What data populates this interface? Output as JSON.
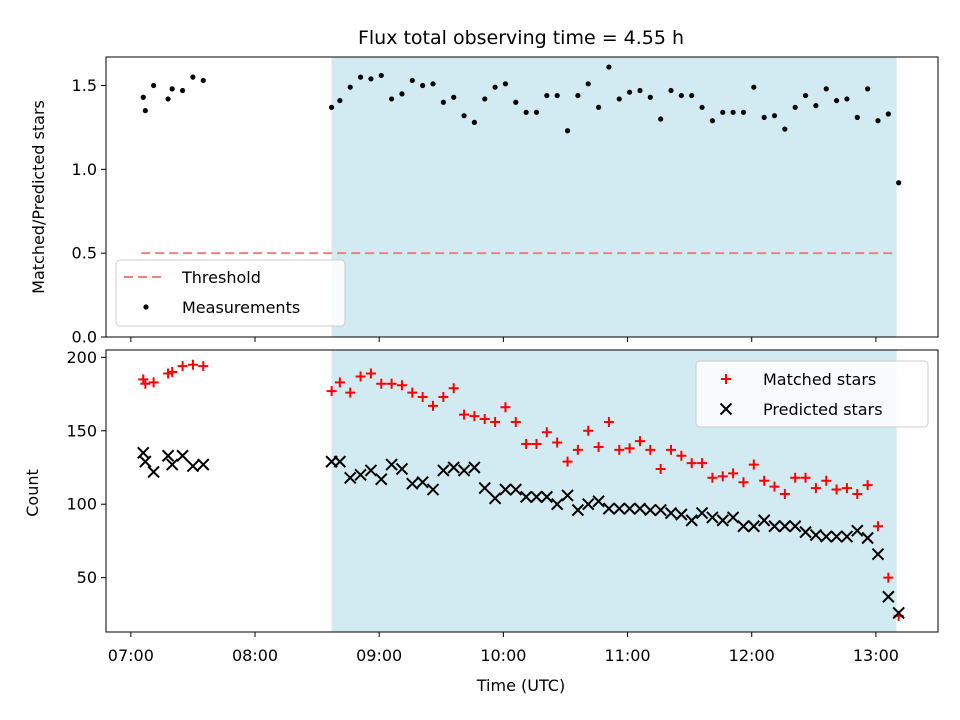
{
  "chart_data": [
    {
      "type": "scatter",
      "title": "Flux total observing time = 4.55 h",
      "ylabel": "Matched/Predicted stars",
      "xlim": [
        "06:48",
        "13:30"
      ],
      "ylim": [
        0,
        1.67
      ],
      "yticks": [
        "0.0",
        "0.5",
        "1.0",
        "1.5"
      ],
      "shaded_interval": [
        "08:37",
        "13:10"
      ],
      "shade_color": "#add8e6",
      "threshold": {
        "name": "Threshold",
        "value": 0.5,
        "x_range": [
          "07:05",
          "13:10"
        ],
        "color": "#f08080"
      },
      "legend_position": "lower-left",
      "series": [
        {
          "name": "Measurements",
          "marker": "dot",
          "color": "#000000",
          "x": [
            "07:06",
            "07:07",
            "07:11",
            "07:18",
            "07:20",
            "07:25",
            "07:30",
            "07:35",
            "08:37",
            "08:41",
            "08:46",
            "08:51",
            "08:56",
            "09:01",
            "09:06",
            "09:11",
            "09:16",
            "09:21",
            "09:26",
            "09:31",
            "09:36",
            "09:41",
            "09:46",
            "09:51",
            "09:56",
            "10:01",
            "10:06",
            "10:11",
            "10:16",
            "10:21",
            "10:26",
            "10:31",
            "10:36",
            "10:41",
            "10:46",
            "10:51",
            "10:56",
            "11:01",
            "11:06",
            "11:11",
            "11:16",
            "11:21",
            "11:26",
            "11:31",
            "11:36",
            "11:41",
            "11:46",
            "11:51",
            "11:56",
            "12:01",
            "12:06",
            "12:11",
            "12:16",
            "12:21",
            "12:26",
            "12:31",
            "12:36",
            "12:41",
            "12:46",
            "12:51",
            "12:56",
            "13:01",
            "13:06",
            "13:11"
          ],
          "y": [
            1.43,
            1.35,
            1.5,
            1.42,
            1.48,
            1.47,
            1.55,
            1.53,
            1.37,
            1.41,
            1.49,
            1.55,
            1.54,
            1.56,
            1.42,
            1.45,
            1.53,
            1.5,
            1.51,
            1.4,
            1.43,
            1.32,
            1.28,
            1.42,
            1.49,
            1.51,
            1.4,
            1.34,
            1.34,
            1.44,
            1.44,
            1.23,
            1.44,
            1.51,
            1.37,
            1.61,
            1.42,
            1.46,
            1.47,
            1.43,
            1.3,
            1.47,
            1.44,
            1.44,
            1.37,
            1.29,
            1.34,
            1.34,
            1.34,
            1.49,
            1.31,
            1.32,
            1.24,
            1.37,
            1.44,
            1.38,
            1.48,
            1.41,
            1.42,
            1.31,
            1.48,
            1.29,
            1.33,
            0.92
          ]
        }
      ]
    },
    {
      "type": "scatter",
      "ylabel": "Count",
      "xlabel": "Time (UTC)",
      "xticks": [
        "07:00",
        "08:00",
        "09:00",
        "10:00",
        "11:00",
        "12:00",
        "13:00"
      ],
      "xlim": [
        "06:48",
        "13:30"
      ],
      "ylim": [
        13,
        205
      ],
      "yticks": [
        "50",
        "100",
        "150",
        "200"
      ],
      "shaded_interval": [
        "08:37",
        "13:10"
      ],
      "shade_color": "#add8e6",
      "legend_position": "upper-right",
      "series": [
        {
          "name": "Matched stars",
          "marker": "plus",
          "color": "#ff0000",
          "x": [
            "07:06",
            "07:07",
            "07:11",
            "07:18",
            "07:20",
            "07:25",
            "07:30",
            "07:35",
            "08:37",
            "08:41",
            "08:46",
            "08:51",
            "08:56",
            "09:01",
            "09:06",
            "09:11",
            "09:16",
            "09:21",
            "09:26",
            "09:31",
            "09:36",
            "09:41",
            "09:46",
            "09:51",
            "09:56",
            "10:01",
            "10:06",
            "10:11",
            "10:16",
            "10:21",
            "10:26",
            "10:31",
            "10:36",
            "10:41",
            "10:46",
            "10:51",
            "10:56",
            "11:01",
            "11:06",
            "11:11",
            "11:16",
            "11:21",
            "11:26",
            "11:31",
            "11:36",
            "11:41",
            "11:46",
            "11:51",
            "11:56",
            "12:01",
            "12:06",
            "12:11",
            "12:16",
            "12:21",
            "12:26",
            "12:31",
            "12:36",
            "12:41",
            "12:46",
            "12:51",
            "12:56",
            "13:01",
            "13:06",
            "13:11"
          ],
          "y": [
            185,
            182,
            183,
            189,
            190,
            194,
            195,
            194,
            177,
            183,
            176,
            187,
            189,
            182,
            182,
            181,
            176,
            173,
            167,
            173,
            179,
            161,
            160,
            158,
            156,
            166,
            156,
            141,
            141,
            149,
            142,
            129,
            137,
            150,
            139,
            156,
            137,
            138,
            143,
            137,
            124,
            137,
            133,
            128,
            128,
            118,
            119,
            121,
            115,
            127,
            116,
            112,
            107,
            118,
            118,
            111,
            116,
            110,
            111,
            107,
            113,
            85,
            50,
            24
          ]
        },
        {
          "name": "Predicted stars",
          "marker": "x",
          "color": "#000000",
          "x": [
            "07:06",
            "07:07",
            "07:11",
            "07:18",
            "07:20",
            "07:25",
            "07:30",
            "07:35",
            "08:37",
            "08:41",
            "08:46",
            "08:51",
            "08:56",
            "09:01",
            "09:06",
            "09:11",
            "09:16",
            "09:21",
            "09:26",
            "09:31",
            "09:36",
            "09:41",
            "09:46",
            "09:51",
            "09:56",
            "10:01",
            "10:06",
            "10:11",
            "10:16",
            "10:21",
            "10:26",
            "10:31",
            "10:36",
            "10:41",
            "10:46",
            "10:51",
            "10:56",
            "11:01",
            "11:06",
            "11:11",
            "11:16",
            "11:21",
            "11:26",
            "11:31",
            "11:36",
            "11:41",
            "11:46",
            "11:51",
            "11:56",
            "12:01",
            "12:06",
            "12:11",
            "12:16",
            "12:21",
            "12:26",
            "12:31",
            "12:36",
            "12:41",
            "12:46",
            "12:51",
            "12:56",
            "13:01",
            "13:06",
            "13:11"
          ],
          "y": [
            135,
            129,
            122,
            133,
            127,
            133,
            126,
            127,
            129,
            129,
            118,
            120,
            123,
            117,
            127,
            124,
            114,
            115,
            110,
            123,
            125,
            123,
            125,
            111,
            104,
            110,
            110,
            105,
            105,
            105,
            100,
            106,
            96,
            100,
            102,
            97,
            97,
            97,
            97,
            96,
            96,
            94,
            93,
            89,
            94,
            91,
            89,
            91,
            85,
            85,
            89,
            85,
            85,
            85,
            81,
            79,
            78,
            78,
            78,
            82,
            77,
            66,
            37,
            26
          ]
        }
      ]
    }
  ]
}
